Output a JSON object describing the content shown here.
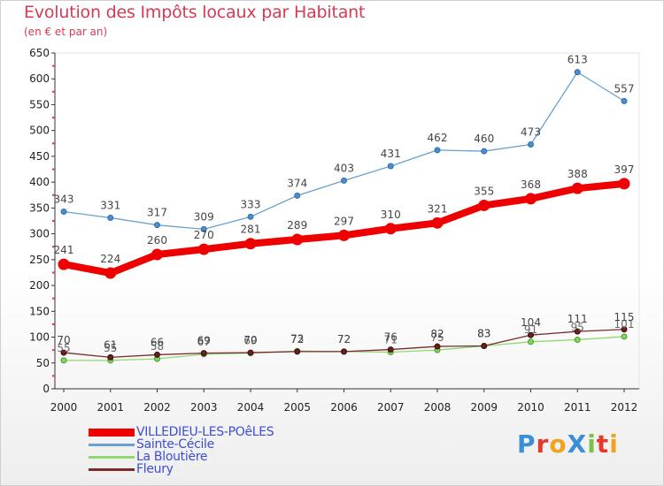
{
  "header": {
    "title": "Evolution des Impôts locaux par Habitant",
    "subtitle": "(en € et par an)"
  },
  "logo": {
    "text": "ProXiti",
    "letters": [
      "P",
      "r",
      "o",
      "X",
      "i",
      "t",
      "i"
    ],
    "colors": [
      "#3a8fd8",
      "#e8382c",
      "#f2a21b",
      "#3a8fd8",
      "#7cc242",
      "#e8382c",
      "#f2a21b"
    ]
  },
  "chart_data": {
    "type": "line",
    "title": "Evolution des Impôts locaux par Habitant",
    "subtitle": "(en € et par an)",
    "xlabel": "",
    "ylabel": "",
    "x": [
      2000,
      2001,
      2002,
      2003,
      2004,
      2005,
      2006,
      2007,
      2008,
      2009,
      2010,
      2011,
      2012
    ],
    "ylim": [
      0,
      650
    ],
    "yticks": [
      0,
      50,
      100,
      150,
      200,
      250,
      300,
      350,
      400,
      450,
      500,
      550,
      600,
      650
    ],
    "grid": false,
    "legend_position": "bottom-left",
    "series": [
      {
        "name": "VILLEDIEU-LES-POêLES",
        "color": "#ee0000",
        "values": [
          241,
          224,
          260,
          270,
          281,
          289,
          297,
          310,
          321,
          355,
          368,
          388,
          397
        ]
      },
      {
        "name": "Sainte-Cécile",
        "color": "#6aa0d0",
        "values": [
          343,
          331,
          317,
          309,
          333,
          374,
          403,
          431,
          462,
          460,
          473,
          613,
          557
        ]
      },
      {
        "name": "La Bloutière",
        "color": "#90d870",
        "values": [
          55,
          55,
          58,
          67,
          69,
          73,
          72,
          71,
          75,
          83,
          91,
          95,
          101
        ]
      },
      {
        "name": "Fleury",
        "color": "#7a2a2a",
        "values": [
          70,
          61,
          66,
          69,
          70,
          72,
          72,
          76,
          82,
          83,
          104,
          111,
          115
        ]
      }
    ]
  }
}
